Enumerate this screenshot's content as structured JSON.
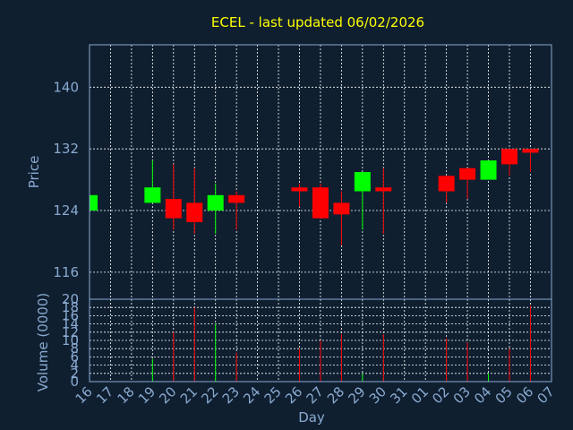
{
  "chart_data": {
    "type": "candlestick",
    "title": "ECEL - last updated 06/02/2026",
    "xlabel": "Day",
    "colors": {
      "background": "#0f1f30",
      "title": "#ffff00",
      "axis_text": "#8aaad0",
      "grid": "#ffffff",
      "up": "#00ff00",
      "down": "#ff0000"
    },
    "price_panel": {
      "ylabel": "Price",
      "ylim": [
        112.5,
        145.5
      ],
      "yticks": [
        116,
        124,
        132,
        140
      ]
    },
    "volume_panel": {
      "ylabel": "Volume (0000)",
      "ylim": [
        0,
        20
      ],
      "yticks": [
        0,
        2,
        4,
        6,
        8,
        10,
        12,
        14,
        16,
        18,
        20
      ]
    },
    "x_labels": [
      "16",
      "17",
      "18",
      "19",
      "20",
      "21",
      "22",
      "23",
      "24",
      "25",
      "26",
      "27",
      "28",
      "29",
      "30",
      "31",
      "01",
      "02",
      "03",
      "04",
      "05",
      "06",
      "07"
    ],
    "candles": [
      {
        "day": 0,
        "open": 124.0,
        "high": 126.0,
        "low": 124.0,
        "close": 126.0,
        "volume": 0
      },
      {
        "day": 3,
        "open": 125.0,
        "high": 130.5,
        "low": 125.0,
        "close": 127.0,
        "volume": 5.5
      },
      {
        "day": 4,
        "open": 125.5,
        "high": 130.0,
        "low": 121.5,
        "close": 123.0,
        "volume": 12.0
      },
      {
        "day": 5,
        "open": 125.0,
        "high": 129.5,
        "low": 121.0,
        "close": 122.5,
        "volume": 18.0
      },
      {
        "day": 6,
        "open": 124.0,
        "high": 127.5,
        "low": 121.0,
        "close": 126.0,
        "volume": 14.0
      },
      {
        "day": 7,
        "open": 126.0,
        "high": 126.5,
        "low": 121.5,
        "close": 125.0,
        "volume": 7.0
      },
      {
        "day": 10,
        "open": 127.0,
        "high": 127.5,
        "low": 124.5,
        "close": 126.5,
        "volume": 8.0
      },
      {
        "day": 11,
        "open": 127.0,
        "high": 127.5,
        "low": 123.0,
        "close": 123.0,
        "volume": 10.0
      },
      {
        "day": 12,
        "open": 125.0,
        "high": 126.5,
        "low": 119.5,
        "close": 123.5,
        "volume": 11.5
      },
      {
        "day": 13,
        "open": 126.5,
        "high": 129.0,
        "low": 121.5,
        "close": 129.0,
        "volume": 2.0
      },
      {
        "day": 14,
        "open": 127.0,
        "high": 129.5,
        "low": 121.0,
        "close": 126.5,
        "volume": 11.5
      },
      {
        "day": 17,
        "open": 128.5,
        "high": 128.5,
        "low": 125.0,
        "close": 126.5,
        "volume": 10.5
      },
      {
        "day": 18,
        "open": 129.5,
        "high": 129.5,
        "low": 125.5,
        "close": 128.0,
        "volume": 9.5
      },
      {
        "day": 19,
        "open": 128.0,
        "high": 130.5,
        "low": 128.0,
        "close": 130.5,
        "volume": 2.0
      },
      {
        "day": 20,
        "open": 132.0,
        "high": 132.0,
        "low": 128.5,
        "close": 130.0,
        "volume": 8.0
      },
      {
        "day": 21,
        "open": 132.0,
        "high": 132.0,
        "low": 129.0,
        "close": 131.5,
        "volume": 18.5
      }
    ]
  }
}
